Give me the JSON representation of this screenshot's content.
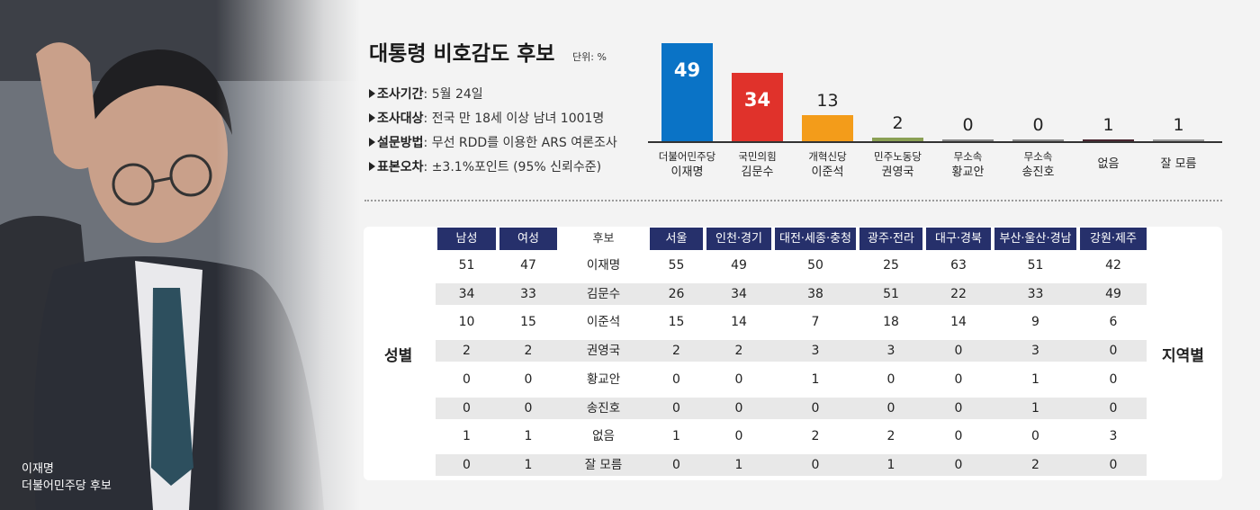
{
  "photo": {
    "caption_line1": "이재명",
    "caption_line2": "더불어민주당 후보"
  },
  "header": {
    "title": "대통령 비호감도 후보",
    "unit": "단위: %"
  },
  "info": [
    {
      "key": "조사기간",
      "value": "5월 24일"
    },
    {
      "key": "조사대상",
      "value": "전국 만 18세 이상 남녀 1001명"
    },
    {
      "key": "설문방법",
      "value": "무선 RDD를 이용한 ARS 여론조사"
    },
    {
      "key": "표본오차",
      "value": "±3.1%포인트 (95% 신뢰수준)"
    }
  ],
  "chart_data": [
    {
      "type": "bar",
      "title": "대통령 비호감도 후보",
      "unit": "단위: %",
      "categories": [
        {
          "party": "더불어민주당",
          "name": "이재명"
        },
        {
          "party": "국민의힘",
          "name": "김문수"
        },
        {
          "party": "개혁신당",
          "name": "이준석"
        },
        {
          "party": "민주노동당",
          "name": "권영국"
        },
        {
          "party": "무소속",
          "name": "황교안"
        },
        {
          "party": "무소속",
          "name": "송진호"
        },
        {
          "party": "",
          "name": "없음"
        },
        {
          "party": "",
          "name": "잘 모름"
        }
      ],
      "values": [
        49,
        34,
        13,
        2,
        0,
        0,
        1,
        1
      ],
      "colors": [
        "#0a73c6",
        "#e0322b",
        "#f39c1a",
        "#8aa054",
        "#888888",
        "#888888",
        "#4a2630",
        "#999999"
      ],
      "ylim": [
        0,
        49
      ]
    },
    {
      "type": "table",
      "row_label_left": "성별",
      "row_label_right": "지역별",
      "columns": [
        "남성",
        "여성",
        "후보",
        "서울",
        "인천·경기",
        "대전·세종·충청",
        "광주·전라",
        "대구·경북",
        "부산·울산·경남",
        "강원·제주"
      ],
      "rows": [
        {
          "candidate": "이재명",
          "values": [
            "51",
            "47",
            "55",
            "49",
            "50",
            "25",
            "63",
            "51",
            "42"
          ]
        },
        {
          "candidate": "김문수",
          "values": [
            "34",
            "33",
            "26",
            "34",
            "38",
            "51",
            "22",
            "33",
            "49"
          ]
        },
        {
          "candidate": "이준석",
          "values": [
            "10",
            "15",
            "15",
            "14",
            "7",
            "18",
            "14",
            "9",
            "6"
          ]
        },
        {
          "candidate": "권영국",
          "values": [
            "2",
            "2",
            "2",
            "2",
            "3",
            "3",
            "0",
            "3",
            "0"
          ]
        },
        {
          "candidate": "황교안",
          "values": [
            "0",
            "0",
            "0",
            "0",
            "1",
            "0",
            "0",
            "1",
            "0"
          ]
        },
        {
          "candidate": "송진호",
          "values": [
            "0",
            "0",
            "0",
            "0",
            "0",
            "0",
            "0",
            "1",
            "0"
          ]
        },
        {
          "candidate": "없음",
          "values": [
            "1",
            "1",
            "1",
            "0",
            "2",
            "2",
            "0",
            "0",
            "3"
          ]
        },
        {
          "candidate": "잘 모름",
          "values": [
            "0",
            "1",
            "0",
            "1",
            "0",
            "1",
            "0",
            "2",
            "0"
          ]
        }
      ]
    }
  ]
}
